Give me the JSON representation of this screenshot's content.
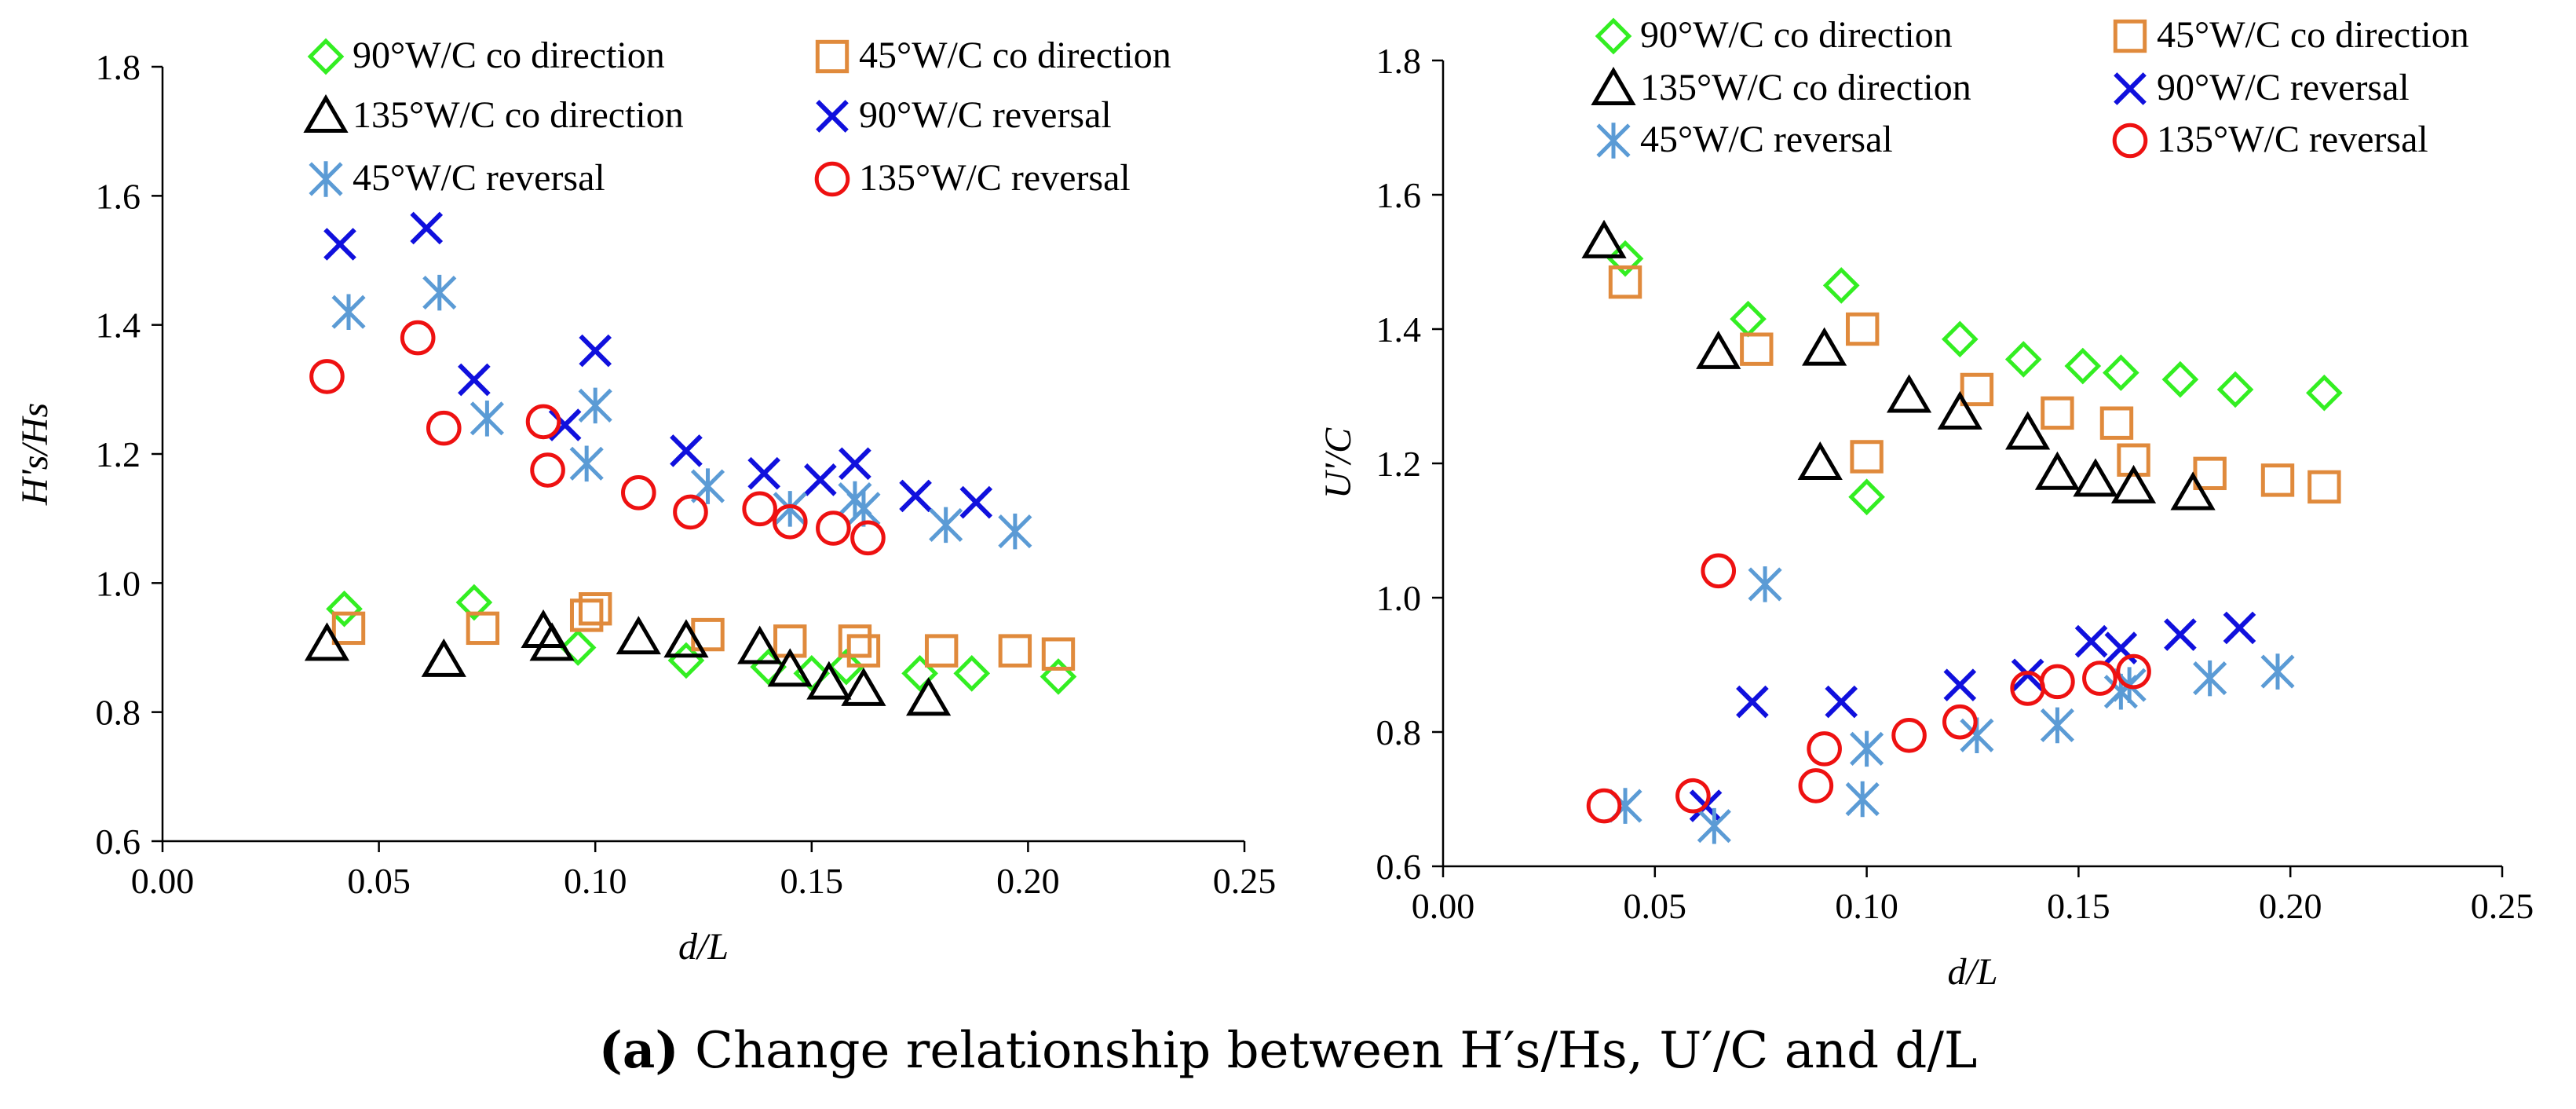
{
  "chart_data": [
    {
      "type": "scatter",
      "panel": "left",
      "xlabel": "d/L",
      "ylabel": "H's/Hs",
      "xlim": [
        0,
        0.25
      ],
      "ylim": [
        0.6,
        1.8
      ],
      "xticks": [
        "0.00",
        "0.05",
        "0.10",
        "0.15",
        "0.20",
        "0.25"
      ],
      "yticks": [
        "0.6",
        "0.8",
        "1.0",
        "1.2",
        "1.4",
        "1.6",
        "1.8"
      ],
      "legend_position": "top",
      "series": [
        {
          "name": "90°W/C co direction",
          "marker": "diamond",
          "color": "#33ee22",
          "x": [
            0.042,
            0.072,
            0.096,
            0.121,
            0.14,
            0.15,
            0.158,
            0.175,
            0.187,
            0.207
          ],
          "y": [
            0.96,
            0.97,
            0.9,
            0.88,
            0.87,
            0.86,
            0.87,
            0.86,
            0.86,
            0.855
          ]
        },
        {
          "name": "45°W/C co direction",
          "marker": "square",
          "color": "#e08a3c",
          "x": [
            0.043,
            0.074,
            0.098,
            0.1,
            0.126,
            0.145,
            0.16,
            0.162,
            0.18,
            0.197,
            0.207
          ],
          "y": [
            0.93,
            0.93,
            0.95,
            0.96,
            0.92,
            0.91,
            0.91,
            0.895,
            0.895,
            0.895,
            0.89
          ]
        },
        {
          "name": "135°W/C co direction",
          "marker": "triangle",
          "color": "#000000",
          "x": [
            0.038,
            0.065,
            0.088,
            0.09,
            0.11,
            0.121,
            0.138,
            0.145,
            0.154,
            0.162,
            0.177
          ],
          "y": [
            0.905,
            0.88,
            0.925,
            0.905,
            0.915,
            0.91,
            0.9,
            0.865,
            0.845,
            0.835,
            0.82
          ]
        },
        {
          "name": "90°W/C reversal",
          "marker": "x",
          "color": "#1010dd",
          "x": [
            0.041,
            0.061,
            0.072,
            0.093,
            0.1,
            0.121,
            0.139,
            0.152,
            0.16,
            0.174,
            0.188
          ],
          "y": [
            1.525,
            1.55,
            1.315,
            1.245,
            1.36,
            1.205,
            1.17,
            1.16,
            1.185,
            1.135,
            1.125
          ]
        },
        {
          "name": "45°W/C reversal",
          "marker": "asterisk",
          "color": "#5b9bd5",
          "x": [
            0.043,
            0.064,
            0.075,
            0.098,
            0.1,
            0.126,
            0.145,
            0.16,
            0.162,
            0.181,
            0.197
          ],
          "y": [
            1.42,
            1.45,
            1.255,
            1.185,
            1.275,
            1.15,
            1.115,
            1.13,
            1.115,
            1.09,
            1.08
          ]
        },
        {
          "name": "135°W/C reversal",
          "marker": "circle",
          "color": "#ee1111",
          "x": [
            0.038,
            0.059,
            0.065,
            0.088,
            0.089,
            0.11,
            0.122,
            0.138,
            0.145,
            0.155,
            0.163
          ],
          "y": [
            1.32,
            1.38,
            1.24,
            1.25,
            1.175,
            1.14,
            1.11,
            1.115,
            1.095,
            1.085,
            1.07
          ]
        }
      ]
    },
    {
      "type": "scatter",
      "panel": "right",
      "xlabel": "d/L",
      "ylabel": "U'/C",
      "xlim": [
        0,
        0.25
      ],
      "ylim": [
        0.6,
        1.8
      ],
      "xticks": [
        "0.00",
        "0.05",
        "0.10",
        "0.15",
        "0.20",
        "0.25"
      ],
      "yticks": [
        "0.6",
        "0.8",
        "1.0",
        "1.2",
        "1.4",
        "1.6",
        "1.8"
      ],
      "legend_position": "top",
      "series": [
        {
          "name": "90°W/C co direction",
          "marker": "diamond",
          "color": "#33ee22",
          "x": [
            0.043,
            0.072,
            0.094,
            0.1,
            0.122,
            0.137,
            0.151,
            0.16,
            0.174,
            0.187,
            0.208
          ],
          "y": [
            1.505,
            1.415,
            1.465,
            1.15,
            1.385,
            1.355,
            1.345,
            1.335,
            1.325,
            1.31,
            1.305
          ]
        },
        {
          "name": "45°W/C co direction",
          "marker": "square",
          "color": "#e08a3c",
          "x": [
            0.043,
            0.074,
            0.099,
            0.1,
            0.126,
            0.145,
            0.159,
            0.163,
            0.181,
            0.197,
            0.208
          ],
          "y": [
            1.47,
            1.37,
            1.4,
            1.21,
            1.31,
            1.275,
            1.26,
            1.205,
            1.185,
            1.175,
            1.165
          ]
        },
        {
          "name": "135°W/C co direction",
          "marker": "triangle",
          "color": "#000000",
          "x": [
            0.038,
            0.065,
            0.089,
            0.09,
            0.11,
            0.122,
            0.138,
            0.145,
            0.154,
            0.163,
            0.177
          ],
          "y": [
            1.53,
            1.365,
            1.2,
            1.37,
            1.3,
            1.275,
            1.245,
            1.185,
            1.175,
            1.165,
            1.155
          ]
        },
        {
          "name": "90°W/C reversal",
          "marker": "x",
          "color": "#1010dd",
          "x": [
            0.062,
            0.073,
            0.094,
            0.122,
            0.138,
            0.153,
            0.16,
            0.174,
            0.188
          ],
          "y": [
            0.69,
            0.845,
            0.845,
            0.87,
            0.885,
            0.935,
            0.925,
            0.945,
            0.955
          ]
        },
        {
          "name": "45°W/C reversal",
          "marker": "asterisk",
          "color": "#5b9bd5",
          "x": [
            0.043,
            0.064,
            0.076,
            0.099,
            0.1,
            0.126,
            0.145,
            0.16,
            0.162,
            0.181,
            0.197
          ],
          "y": [
            0.69,
            0.66,
            1.02,
            0.7,
            0.775,
            0.795,
            0.81,
            0.86,
            0.87,
            0.88,
            0.89
          ]
        },
        {
          "name": "135°W/C reversal",
          "marker": "circle",
          "color": "#ee1111",
          "x": [
            0.038,
            0.059,
            0.065,
            0.088,
            0.09,
            0.11,
            0.122,
            0.138,
            0.145,
            0.155,
            0.163
          ],
          "y": [
            0.69,
            0.705,
            1.04,
            0.72,
            0.775,
            0.795,
            0.815,
            0.865,
            0.875,
            0.88,
            0.89
          ]
        }
      ]
    }
  ],
  "caption": {
    "label": "(a)",
    "text": "Change relationship between H′s/Hs, U′/C and d/L"
  }
}
